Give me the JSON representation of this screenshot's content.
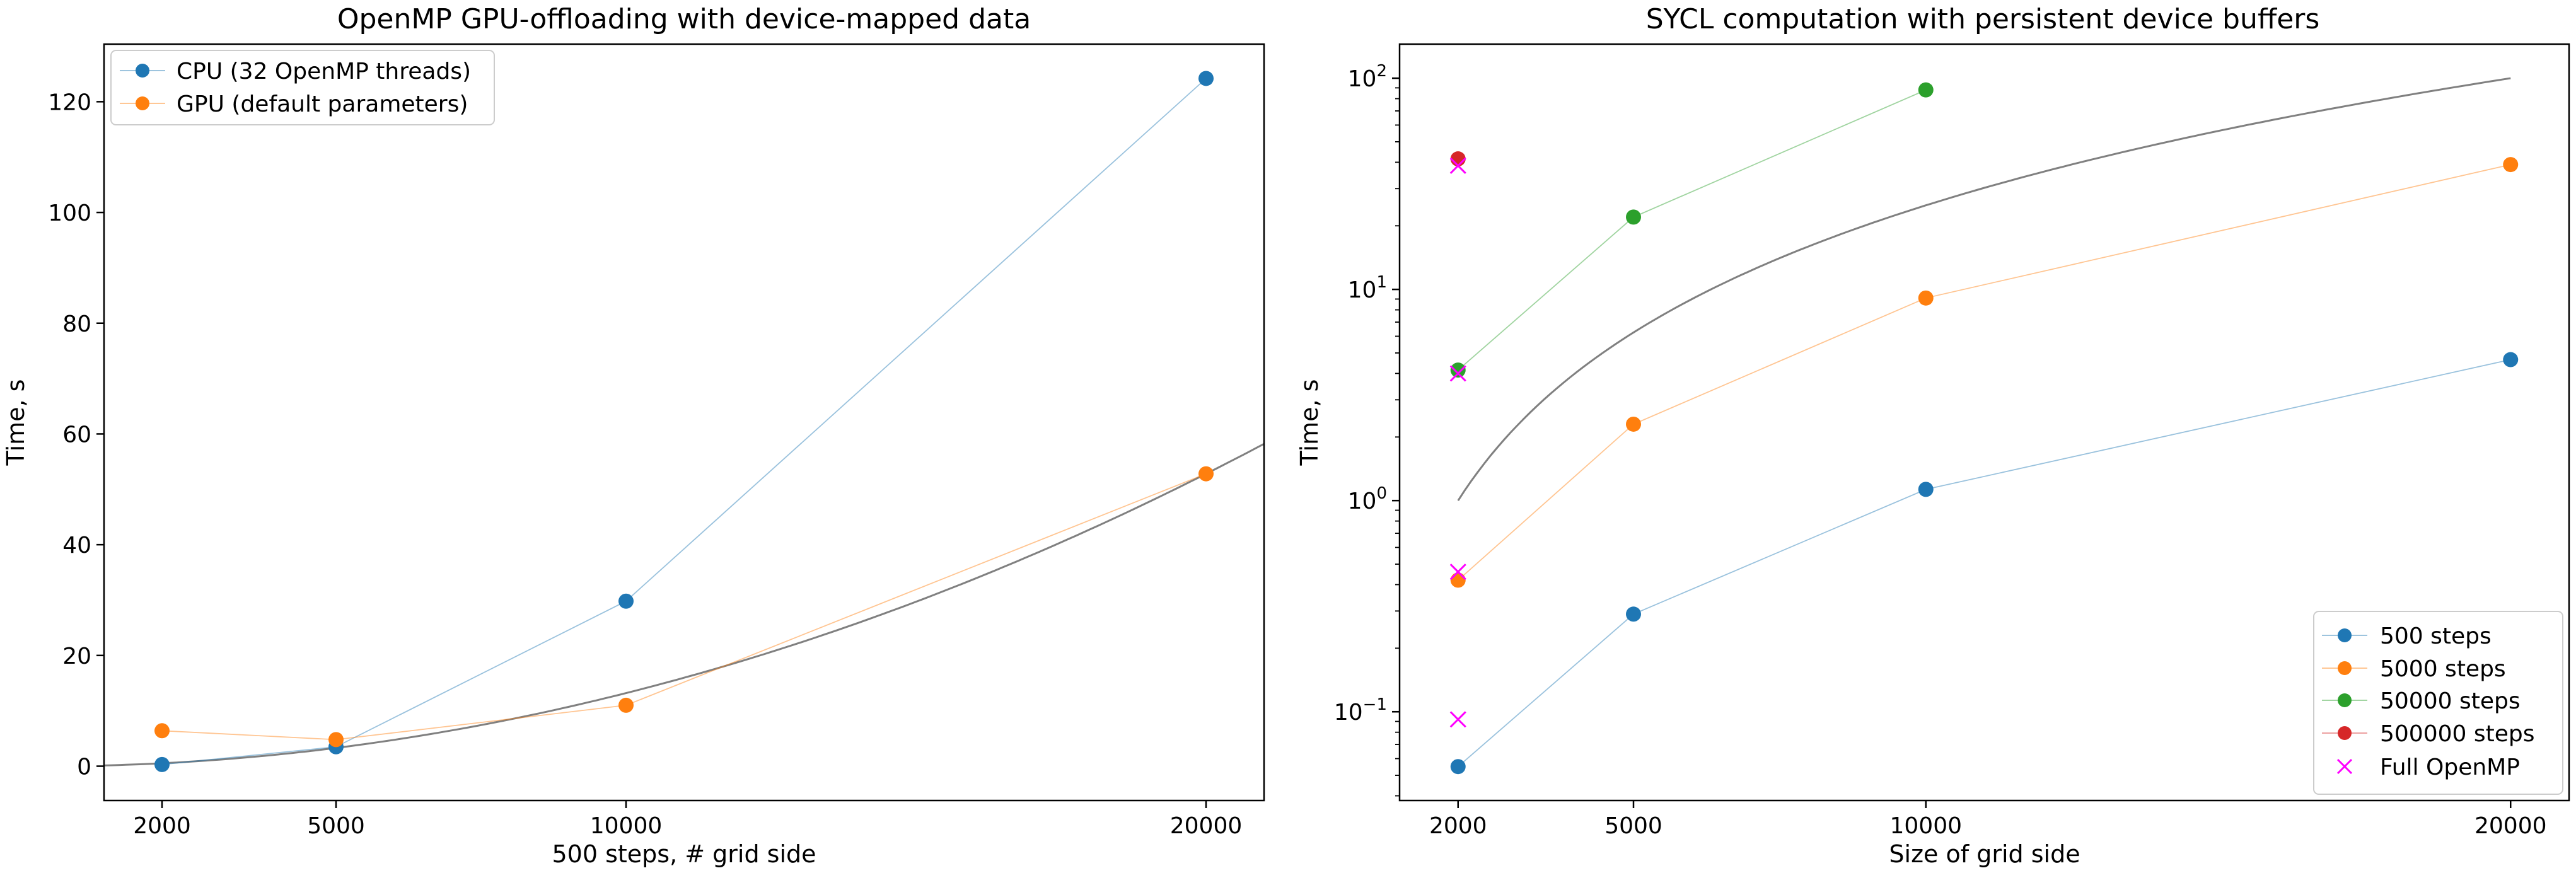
{
  "colors": {
    "blue": "#1f77b4",
    "orange": "#ff7f0e",
    "green": "#2ca02c",
    "red": "#d62728",
    "magenta": "#ff00ff",
    "fit": "#808080"
  },
  "chart_data": [
    {
      "type": "line",
      "title": "OpenMP GPU-offloading with device-mapped data",
      "xlabel": "500 steps, # grid side",
      "ylabel": "Time, s",
      "xlim": [
        1000,
        21000
      ],
      "ylim": [
        -6.2,
        130.4
      ],
      "yscale": "linear",
      "xticks": [
        2000,
        5000,
        10000,
        20000
      ],
      "xtick_labels": [
        "2000",
        "5000",
        "10000",
        "20000"
      ],
      "yticks": [
        0,
        20,
        40,
        60,
        80,
        100,
        120
      ],
      "ytick_labels": [
        "0",
        "20",
        "40",
        "60",
        "80",
        "100",
        "120"
      ],
      "legend_location": "upper-left",
      "series": [
        {
          "name": "CPU (32 OpenMP threads)",
          "color_key": "blue",
          "marker": "o",
          "x": [
            2000,
            5000,
            10000,
            20000
          ],
          "y": [
            0.3,
            3.5,
            29.8,
            124.2
          ]
        },
        {
          "name": "GPU (default parameters)",
          "color_key": "orange",
          "marker": "o",
          "x": [
            2000,
            5000,
            10000,
            20000
          ],
          "y": [
            6.4,
            4.8,
            11.0,
            52.8
          ]
        }
      ],
      "fit_curve": {
        "formula": "c * x^2",
        "c": 1.32e-07,
        "color_key": "fit"
      }
    },
    {
      "type": "line",
      "title": "SYCL computation with persistent device buffers",
      "xlabel": "Size of grid side",
      "ylabel": "Time, s",
      "xlim": [
        1000,
        21000
      ],
      "ylim": [
        0.038,
        145
      ],
      "yscale": "log",
      "xticks": [
        2000,
        5000,
        10000,
        20000
      ],
      "xtick_labels": [
        "2000",
        "5000",
        "10000",
        "20000"
      ],
      "yticks": [
        0.1,
        1,
        10,
        100
      ],
      "ytick_bases": [
        "10",
        "10",
        "10",
        "10"
      ],
      "ytick_exponents": [
        "−1",
        "0",
        "1",
        "2"
      ],
      "legend_location": "lower-right",
      "series": [
        {
          "name": "500 steps",
          "color_key": "blue",
          "marker": "o",
          "x": [
            2000,
            5000,
            10000,
            20000
          ],
          "y": [
            0.055,
            0.29,
            1.13,
            4.65
          ]
        },
        {
          "name": "5000 steps",
          "color_key": "orange",
          "marker": "o",
          "x": [
            2000,
            5000,
            10000,
            20000
          ],
          "y": [
            0.42,
            2.3,
            9.1,
            39.0
          ]
        },
        {
          "name": "50000 steps",
          "color_key": "green",
          "marker": "o",
          "x": [
            2000,
            5000,
            10000
          ],
          "y": [
            4.15,
            22.0,
            88.0
          ]
        },
        {
          "name": "500000 steps",
          "color_key": "red",
          "marker": "o",
          "x": [
            2000
          ],
          "y": [
            41.5
          ]
        },
        {
          "name": "Full OpenMP",
          "color_key": "magenta",
          "marker": "x",
          "x": [
            2000,
            2000,
            2000,
            2000
          ],
          "y": [
            0.092,
            0.46,
            4.0,
            38.5
          ]
        }
      ],
      "fit_curve": {
        "formula": "c * x^2",
        "c": 2.5e-07,
        "x_range": [
          2000,
          20000
        ],
        "color_key": "fit"
      }
    }
  ]
}
